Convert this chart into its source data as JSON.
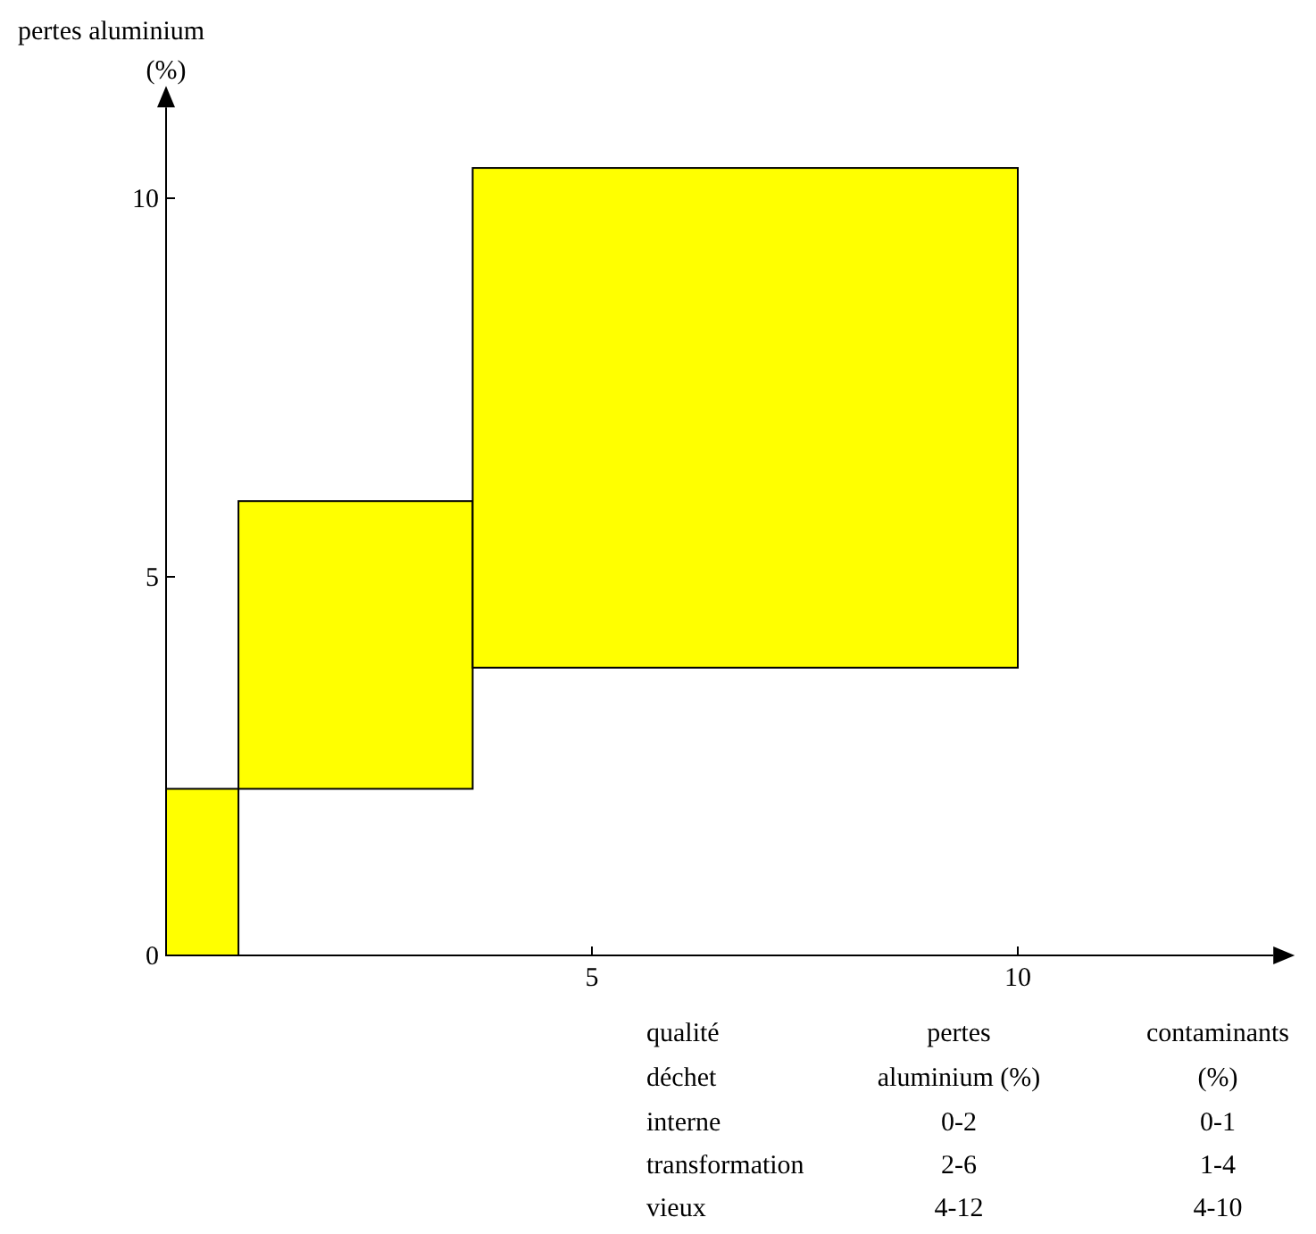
{
  "chart_data": {
    "type": "histogram",
    "ylabel": "pertes aluminium (%)",
    "xlim": [
      0,
      13
    ],
    "xticks": [
      5,
      10
    ],
    "ylim": [
      0,
      11.2
    ],
    "yticks": [
      0,
      5,
      10
    ],
    "grid": false,
    "legend": false,
    "color": "#ffff00",
    "bins": [
      0,
      0.85,
      3.6,
      10
    ],
    "base": [
      0,
      2.2,
      3.8
    ],
    "values": [
      2.2,
      3.8,
      6.6
    ],
    "annotations": [
      "qualité",
      "pertes",
      "contaminants",
      "déchet",
      "aluminium (%)",
      "(%)",
      "interne",
      "0-2",
      "0-1",
      "transformation",
      "2-6",
      "1-4",
      "vieux",
      "4-12",
      "4-10"
    ]
  }
}
